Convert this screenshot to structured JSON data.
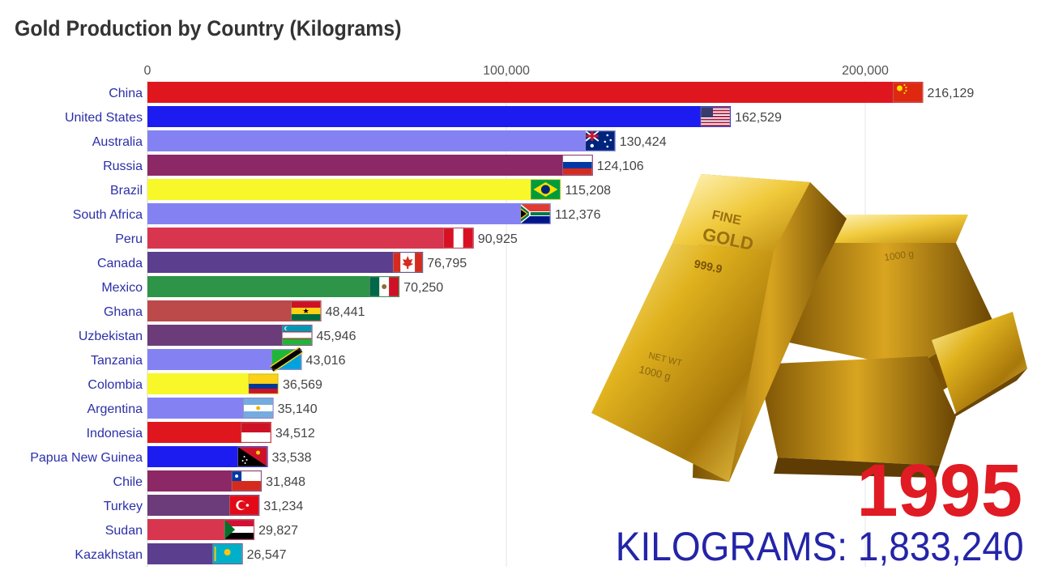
{
  "chart_data": {
    "type": "bar",
    "title": "Gold Production by Country (Kilograms)",
    "categories": [
      "China",
      "United States",
      "Australia",
      "Russia",
      "Brazil",
      "South Africa",
      "Peru",
      "Canada",
      "Mexico",
      "Ghana",
      "Uzbekistan",
      "Tanzania",
      "Colombia",
      "Argentina",
      "Indonesia",
      "Papua New Guinea",
      "Chile",
      "Turkey",
      "Sudan",
      "Kazakhstan"
    ],
    "values": [
      216129,
      162529,
      130424,
      124106,
      115208,
      112376,
      90925,
      76795,
      70250,
      48441,
      45946,
      43016,
      36569,
      35140,
      34512,
      33538,
      31848,
      31234,
      29827,
      26547
    ],
    "value_labels": [
      "216,129",
      "162,529",
      "130,424",
      "124,106",
      "115,208",
      "112,376",
      "90,925",
      "76,795",
      "70,250",
      "48,441",
      "45,946",
      "43,016",
      "36,569",
      "35,140",
      "34,512",
      "33,538",
      "31,848",
      "31,234",
      "29,827",
      "26,547"
    ],
    "bar_colors": [
      "#e0161f",
      "#1c1cf0",
      "#8482f2",
      "#8c2866",
      "#f7f72a",
      "#8482f2",
      "#d8364f",
      "#5b3e8e",
      "#2e9447",
      "#bc4a4a",
      "#6c3c7a",
      "#8482f2",
      "#f7f72a",
      "#8482f2",
      "#e0161f",
      "#1c1cf0",
      "#8c2866",
      "#6c3c7a",
      "#d8364f",
      "#5b3e8e"
    ],
    "flags": [
      "china-flag",
      "usa-flag",
      "australia-flag",
      "russia-flag",
      "brazil-flag",
      "south-africa-flag",
      "peru-flag",
      "canada-flag",
      "mexico-flag",
      "ghana-flag",
      "uzbekistan-flag",
      "tanzania-flag",
      "colombia-flag",
      "argentina-flag",
      "indonesia-flag",
      "papua-new-guinea-flag",
      "chile-flag",
      "turkey-flag",
      "sudan-flag",
      "kazakhstan-flag"
    ],
    "ticks": [
      0,
      100000,
      200000
    ],
    "tick_labels": [
      "0",
      "100,000",
      "200,000"
    ],
    "xlim": [
      0,
      245000
    ],
    "grid": true,
    "orientation": "horizontal"
  },
  "year": "1995",
  "total": {
    "label": "KILOGRAMS:",
    "value": "1,833,240"
  },
  "decoration": {
    "image": "gold-bars-icon",
    "engravings": [
      "FINE",
      "GOLD",
      "999.9",
      "NET WT",
      "1000 g"
    ]
  }
}
